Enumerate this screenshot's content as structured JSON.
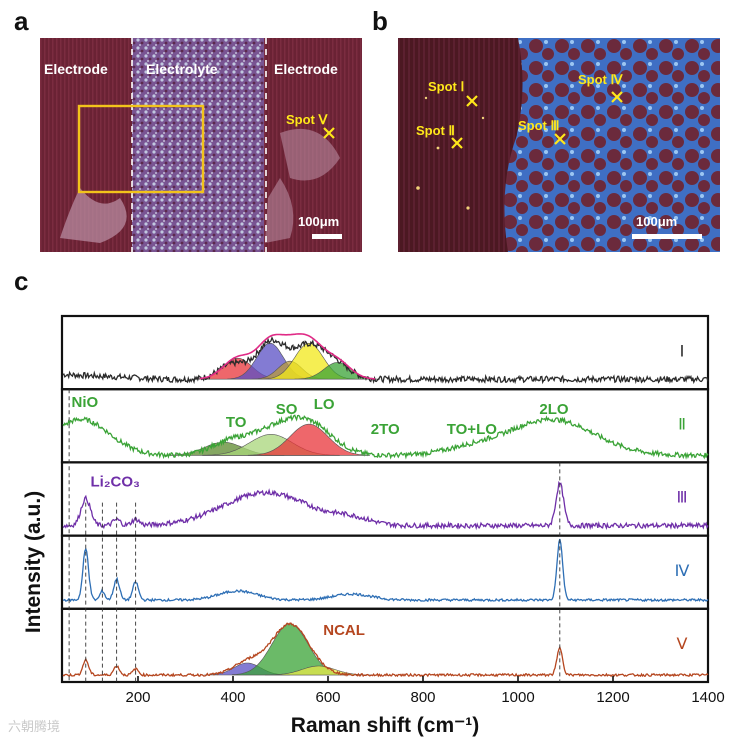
{
  "panels": {
    "a": "a",
    "b": "b",
    "c": "c"
  },
  "panel_a": {
    "labels": [
      "Electrode",
      "Electrolyte",
      "Electrode"
    ],
    "spot": "Spot Ⅴ",
    "scale": "100μm"
  },
  "panel_b": {
    "spots": [
      "Spot Ⅰ",
      "Spot Ⅱ",
      "Spot Ⅲ",
      "Spot Ⅳ"
    ],
    "scale": "100μm"
  },
  "colors": {
    "I": "#2b2b2b",
    "II": "#3aa336",
    "III": "#6f2fa8",
    "IV": "#2e6fb5",
    "V": "#b5461f",
    "spot_marker": "#ffe81a",
    "roi_box": "#f2c31b"
  },
  "chart_data": {
    "type": "line",
    "xlabel": "Raman shift (cm⁻¹)",
    "ylabel": "Intensity (a.u.)",
    "xlim": [
      40,
      1400
    ],
    "x_ticks": [
      200,
      400,
      600,
      800,
      1000,
      1200,
      1400
    ],
    "grid": false,
    "stacked_panels": true,
    "series": [
      {
        "name": "Ⅰ",
        "peaks": [
          [
            400,
            0.25,
            30
          ],
          [
            480,
            0.6,
            30
          ],
          [
            560,
            0.55,
            35
          ],
          [
            620,
            0.2,
            30
          ]
        ],
        "baseline": 0.1,
        "noise": 0.05,
        "fit_components": [
          {
            "center": 410,
            "height": 0.35,
            "width": 30,
            "color": "#e8343a"
          },
          {
            "center": 478,
            "height": 0.6,
            "width": 28,
            "color": "#5a4fc4"
          },
          {
            "center": 520,
            "height": 0.3,
            "width": 25,
            "color": "#b89a3a"
          },
          {
            "center": 560,
            "height": 0.6,
            "width": 30,
            "color": "#f2e81a"
          },
          {
            "center": 620,
            "height": 0.28,
            "width": 28,
            "color": "#3aa336"
          }
        ],
        "fit_envelope_color": "#e02a86"
      },
      {
        "name": "Ⅱ",
        "peaks": [
          [
            80,
            0.6,
            60
          ],
          [
            390,
            0.2,
            40
          ],
          [
            480,
            0.35,
            50
          ],
          [
            560,
            0.5,
            50
          ],
          [
            1070,
            0.6,
            90
          ],
          [
            900,
            0.1,
            60
          ]
        ],
        "baseline": 0.05,
        "noise": 0.04,
        "annotations": [
          "NiO",
          "TO",
          "SO",
          "LO",
          "2TO",
          "TO+LO",
          "2LO"
        ],
        "fit_components": [
          {
            "center": 380,
            "height": 0.22,
            "width": 40,
            "color": "#5c8a2e"
          },
          {
            "center": 480,
            "height": 0.35,
            "width": 45,
            "color": "#a8d67a"
          },
          {
            "center": 560,
            "height": 0.52,
            "width": 40,
            "color": "#e8343a"
          }
        ]
      },
      {
        "name": "Ⅲ",
        "peaks": [
          [
            90,
            0.45,
            10
          ],
          [
            155,
            0.1,
            8
          ],
          [
            195,
            0.1,
            8
          ],
          [
            470,
            0.55,
            90
          ],
          [
            650,
            0.1,
            40
          ],
          [
            1088,
            0.7,
            8
          ]
        ],
        "baseline": 0.1,
        "noise": 0.04,
        "annotations": [
          "Li₂CO₃"
        ]
      },
      {
        "name": "Ⅳ",
        "peaks": [
          [
            90,
            0.85,
            6
          ],
          [
            125,
            0.15,
            5
          ],
          [
            155,
            0.35,
            6
          ],
          [
            195,
            0.3,
            6
          ],
          [
            410,
            0.15,
            40
          ],
          [
            650,
            0.1,
            40
          ],
          [
            1088,
            1.0,
            6
          ]
        ],
        "baseline": 0.08,
        "noise": 0.02
      },
      {
        "name": "Ⅴ",
        "peaks": [
          [
            90,
            0.25,
            6
          ],
          [
            155,
            0.15,
            6
          ],
          [
            195,
            0.1,
            6
          ],
          [
            430,
            0.2,
            30
          ],
          [
            520,
            0.85,
            40
          ],
          [
            1088,
            0.45,
            6
          ]
        ],
        "baseline": 0.05,
        "noise": 0.02,
        "annotations": [
          "NCAL"
        ],
        "fit_components": [
          {
            "center": 430,
            "height": 0.2,
            "width": 28,
            "color": "#5a4fc4"
          },
          {
            "center": 520,
            "height": 0.85,
            "width": 38,
            "color": "#3aa336"
          },
          {
            "center": 580,
            "height": 0.15,
            "width": 35,
            "color": "#e6e84a"
          }
        ]
      }
    ],
    "reference_lines_x": [
      90,
      125,
      155,
      195,
      1088
    ],
    "reference_line_first_x": 55
  },
  "watermark": "六朝腾境"
}
